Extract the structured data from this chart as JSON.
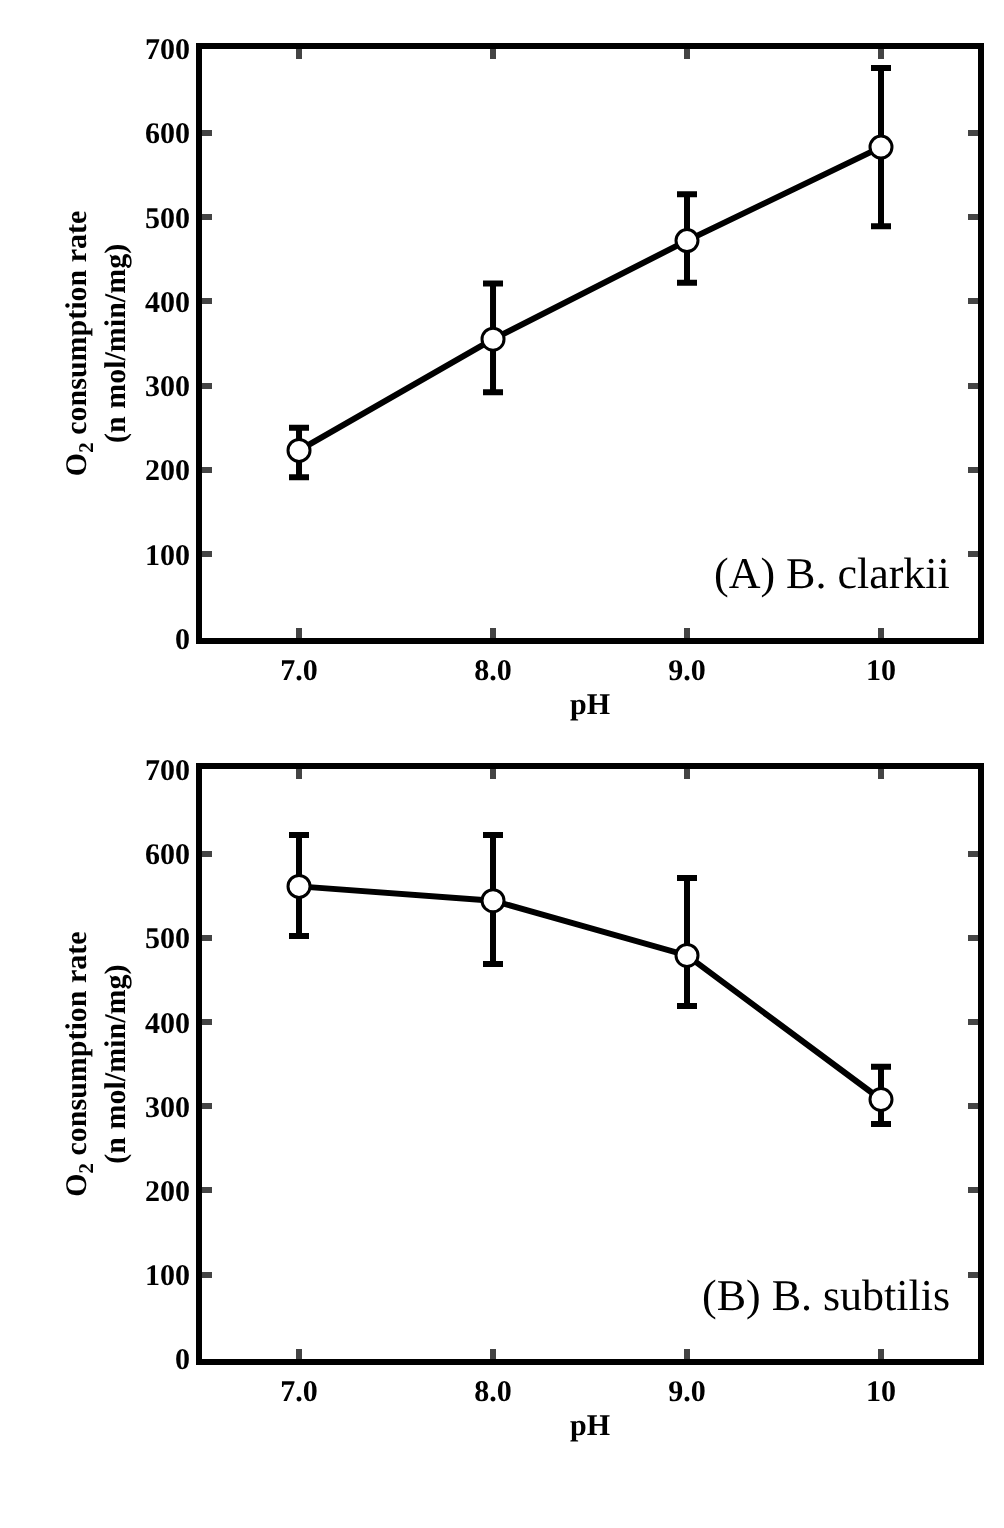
{
  "chart_data": [
    {
      "type": "line",
      "xlabel": "pH",
      "ylabel": "O$_{2}$ consumption rate\n(n mol/min/mg)",
      "annotations": [
        "(A) B. clarkii"
      ],
      "x": [
        7,
        8,
        9,
        10
      ],
      "xlim": [
        6.5,
        10.5
      ],
      "xticks": [
        {
          "value": 7,
          "label": "7.0"
        },
        {
          "value": 8,
          "label": "8.0"
        },
        {
          "value": 9,
          "label": "9.0"
        },
        10
      ],
      "ylim": [
        0,
        700
      ],
      "yticks": [
        0,
        100,
        200,
        300,
        400,
        500,
        600,
        700
      ],
      "marker": "circle",
      "line_style": "solid",
      "series": [
        {
          "color": "#000000",
          "values": [
            223,
            355,
            472,
            583
          ],
          "errors": [
            [
              191,
              250
            ],
            [
              292,
              421
            ],
            [
              422,
              527
            ],
            [
              489,
              677
            ]
          ]
        }
      ]
    },
    {
      "type": "line",
      "xlabel": "pH",
      "ylabel": "O$_{2}$ consumption rate\n(n mol/min/mg)",
      "annotations": [
        "(B) B. subtilis"
      ],
      "x": [
        7,
        8,
        9,
        10
      ],
      "xlim": [
        6.5,
        10.5
      ],
      "xticks": [
        {
          "value": 7,
          "label": "7.0"
        },
        {
          "value": 8,
          "label": "8.0"
        },
        {
          "value": 9,
          "label": "9.0"
        },
        10
      ],
      "ylim": [
        0,
        700
      ],
      "yticks": [
        0,
        100,
        200,
        300,
        400,
        500,
        600,
        700
      ],
      "marker": "circle",
      "line_style": "solid",
      "series": [
        {
          "color": "#000000",
          "values": [
            561,
            544,
            479,
            308
          ],
          "errors": [
            [
              502,
              622
            ],
            [
              469,
              622
            ],
            [
              419,
              571
            ],
            [
              279,
              347
            ]
          ]
        }
      ]
    }
  ]
}
